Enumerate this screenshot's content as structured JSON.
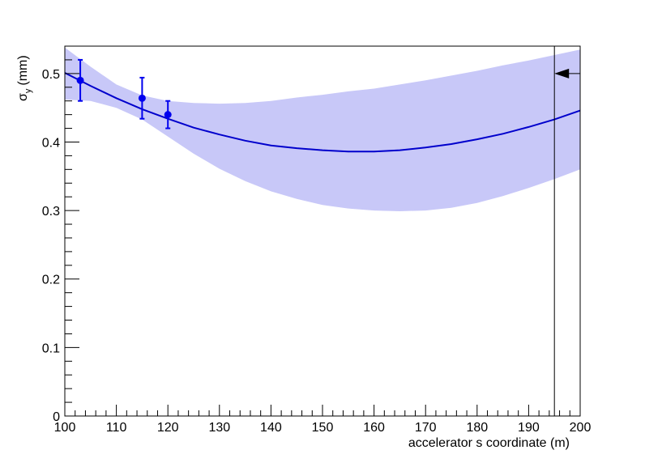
{
  "chart_data": {
    "type": "line",
    "title": "",
    "xlabel": "accelerator s coordinate (m)",
    "ylabel_main": "σ",
    "ylabel_sub": "y",
    "ylabel_unit": "(mm)",
    "xlim": [
      100,
      200
    ],
    "ylim": [
      0,
      0.54
    ],
    "x_ticks": [
      100,
      110,
      120,
      130,
      140,
      150,
      160,
      170,
      180,
      190,
      200
    ],
    "x_tick_labels": [
      "100",
      "110",
      "120",
      "130",
      "140",
      "150",
      "160",
      "170",
      "180",
      "190",
      "200"
    ],
    "y_ticks": [
      0,
      0.1,
      0.2,
      0.3,
      0.4,
      0.5
    ],
    "y_tick_labels": [
      "0",
      "0.1",
      "0.2",
      "0.3",
      "0.4",
      "0.5"
    ],
    "grid": false,
    "legend": "none",
    "colors": {
      "fit": "#0000cc",
      "band": "#c8c8f8",
      "points": "#0000ee",
      "axes": "#000000"
    },
    "fit_curve": {
      "x": [
        100,
        105,
        110,
        115,
        120,
        125,
        130,
        135,
        140,
        145,
        150,
        155,
        160,
        165,
        170,
        175,
        180,
        185,
        190,
        195,
        200
      ],
      "y": [
        0.501,
        0.482,
        0.464,
        0.448,
        0.434,
        0.421,
        0.411,
        0.402,
        0.395,
        0.391,
        0.388,
        0.386,
        0.386,
        0.388,
        0.392,
        0.397,
        0.404,
        0.412,
        0.422,
        0.433,
        0.446
      ]
    },
    "band_upper": {
      "x": [
        100,
        105,
        110,
        115,
        120,
        125,
        130,
        135,
        140,
        145,
        150,
        155,
        160,
        165,
        170,
        175,
        180,
        185,
        190,
        195,
        200
      ],
      "y": [
        0.538,
        0.51,
        0.484,
        0.468,
        0.46,
        0.457,
        0.456,
        0.457,
        0.46,
        0.465,
        0.469,
        0.474,
        0.478,
        0.484,
        0.49,
        0.497,
        0.504,
        0.512,
        0.519,
        0.527,
        0.535
      ]
    },
    "band_lower": {
      "x": [
        100,
        105,
        110,
        115,
        120,
        125,
        130,
        135,
        140,
        145,
        150,
        155,
        160,
        165,
        170,
        175,
        180,
        185,
        190,
        195,
        200
      ],
      "y": [
        0.462,
        0.46,
        0.45,
        0.433,
        0.408,
        0.383,
        0.361,
        0.343,
        0.328,
        0.317,
        0.308,
        0.303,
        0.3,
        0.299,
        0.3,
        0.304,
        0.311,
        0.321,
        0.333,
        0.346,
        0.36
      ]
    },
    "points": [
      {
        "x": 103.0,
        "y": 0.49,
        "yerr": 0.03
      },
      {
        "x": 115.0,
        "y": 0.464,
        "yerr": 0.03
      },
      {
        "x": 120.0,
        "y": 0.44,
        "yerr": 0.02
      }
    ],
    "marker_line_x": 195,
    "marker_arrow": {
      "x_from": 200,
      "x_to": 195,
      "y": 0.5
    }
  }
}
